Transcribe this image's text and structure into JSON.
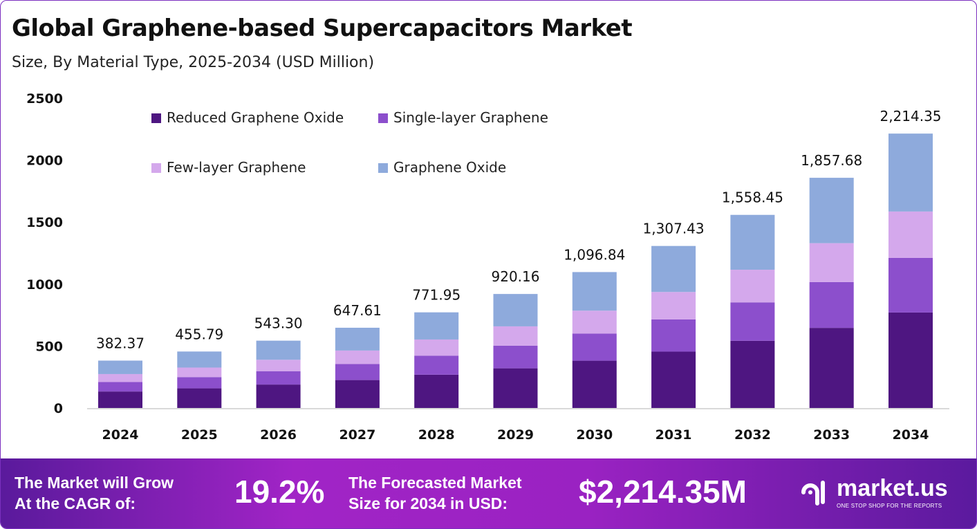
{
  "chart_data": {
    "type": "bar",
    "stacked": true,
    "title": "Global Graphene-based Supercapacitors Market",
    "subtitle": "Size, By Material Type, 2025-2034 (USD Million)",
    "xlabel": "",
    "ylabel": "",
    "ylim": [
      0,
      2500
    ],
    "yticks": [
      0,
      500,
      1000,
      1500,
      2000,
      2500
    ],
    "grid": false,
    "legend_position": "top-left",
    "categories": [
      "2024",
      "2025",
      "2026",
      "2027",
      "2028",
      "2029",
      "2030",
      "2031",
      "2032",
      "2033",
      "2034"
    ],
    "totals": [
      "382.37",
      "455.79",
      "543.30",
      "647.61",
      "771.95",
      "920.16",
      "1,096.84",
      "1,307.43",
      "1,558.45",
      "1,857.68",
      "2,214.35"
    ],
    "series": [
      {
        "name": "Reduced Graphene Oxide",
        "color": "#4e1681",
        "values": [
          133.1,
          158.6,
          189.1,
          225.4,
          268.6,
          320.2,
          381.7,
          455.0,
          542.3,
          646.5,
          770.6
        ]
      },
      {
        "name": "Single-layer Graphene",
        "color": "#8c4fcc",
        "values": [
          76.1,
          90.7,
          108.1,
          128.9,
          153.6,
          183.1,
          218.3,
          260.2,
          310.1,
          369.7,
          440.7
        ]
      },
      {
        "name": "Few-layer Graphene",
        "color": "#d4a8ec",
        "values": [
          64.6,
          77.0,
          91.8,
          109.4,
          130.5,
          155.5,
          185.4,
          221.0,
          263.4,
          313.9,
          374.2
        ]
      },
      {
        "name": "Graphene Oxide",
        "color": "#8eaadc",
        "values": [
          108.6,
          129.4,
          154.3,
          183.9,
          219.2,
          261.3,
          311.5,
          371.3,
          442.6,
          527.6,
          628.9
        ]
      }
    ]
  },
  "footer": {
    "cagr_label": "The Market will Grow At the CAGR of:",
    "cagr_value": "19.2%",
    "forecast_label": "The Forecasted Market Size for 2034 in USD:",
    "forecast_value": "$2,214.35M",
    "logo_name": "market.us",
    "logo_tagline": "ONE STOP SHOP FOR THE REPORTS"
  }
}
